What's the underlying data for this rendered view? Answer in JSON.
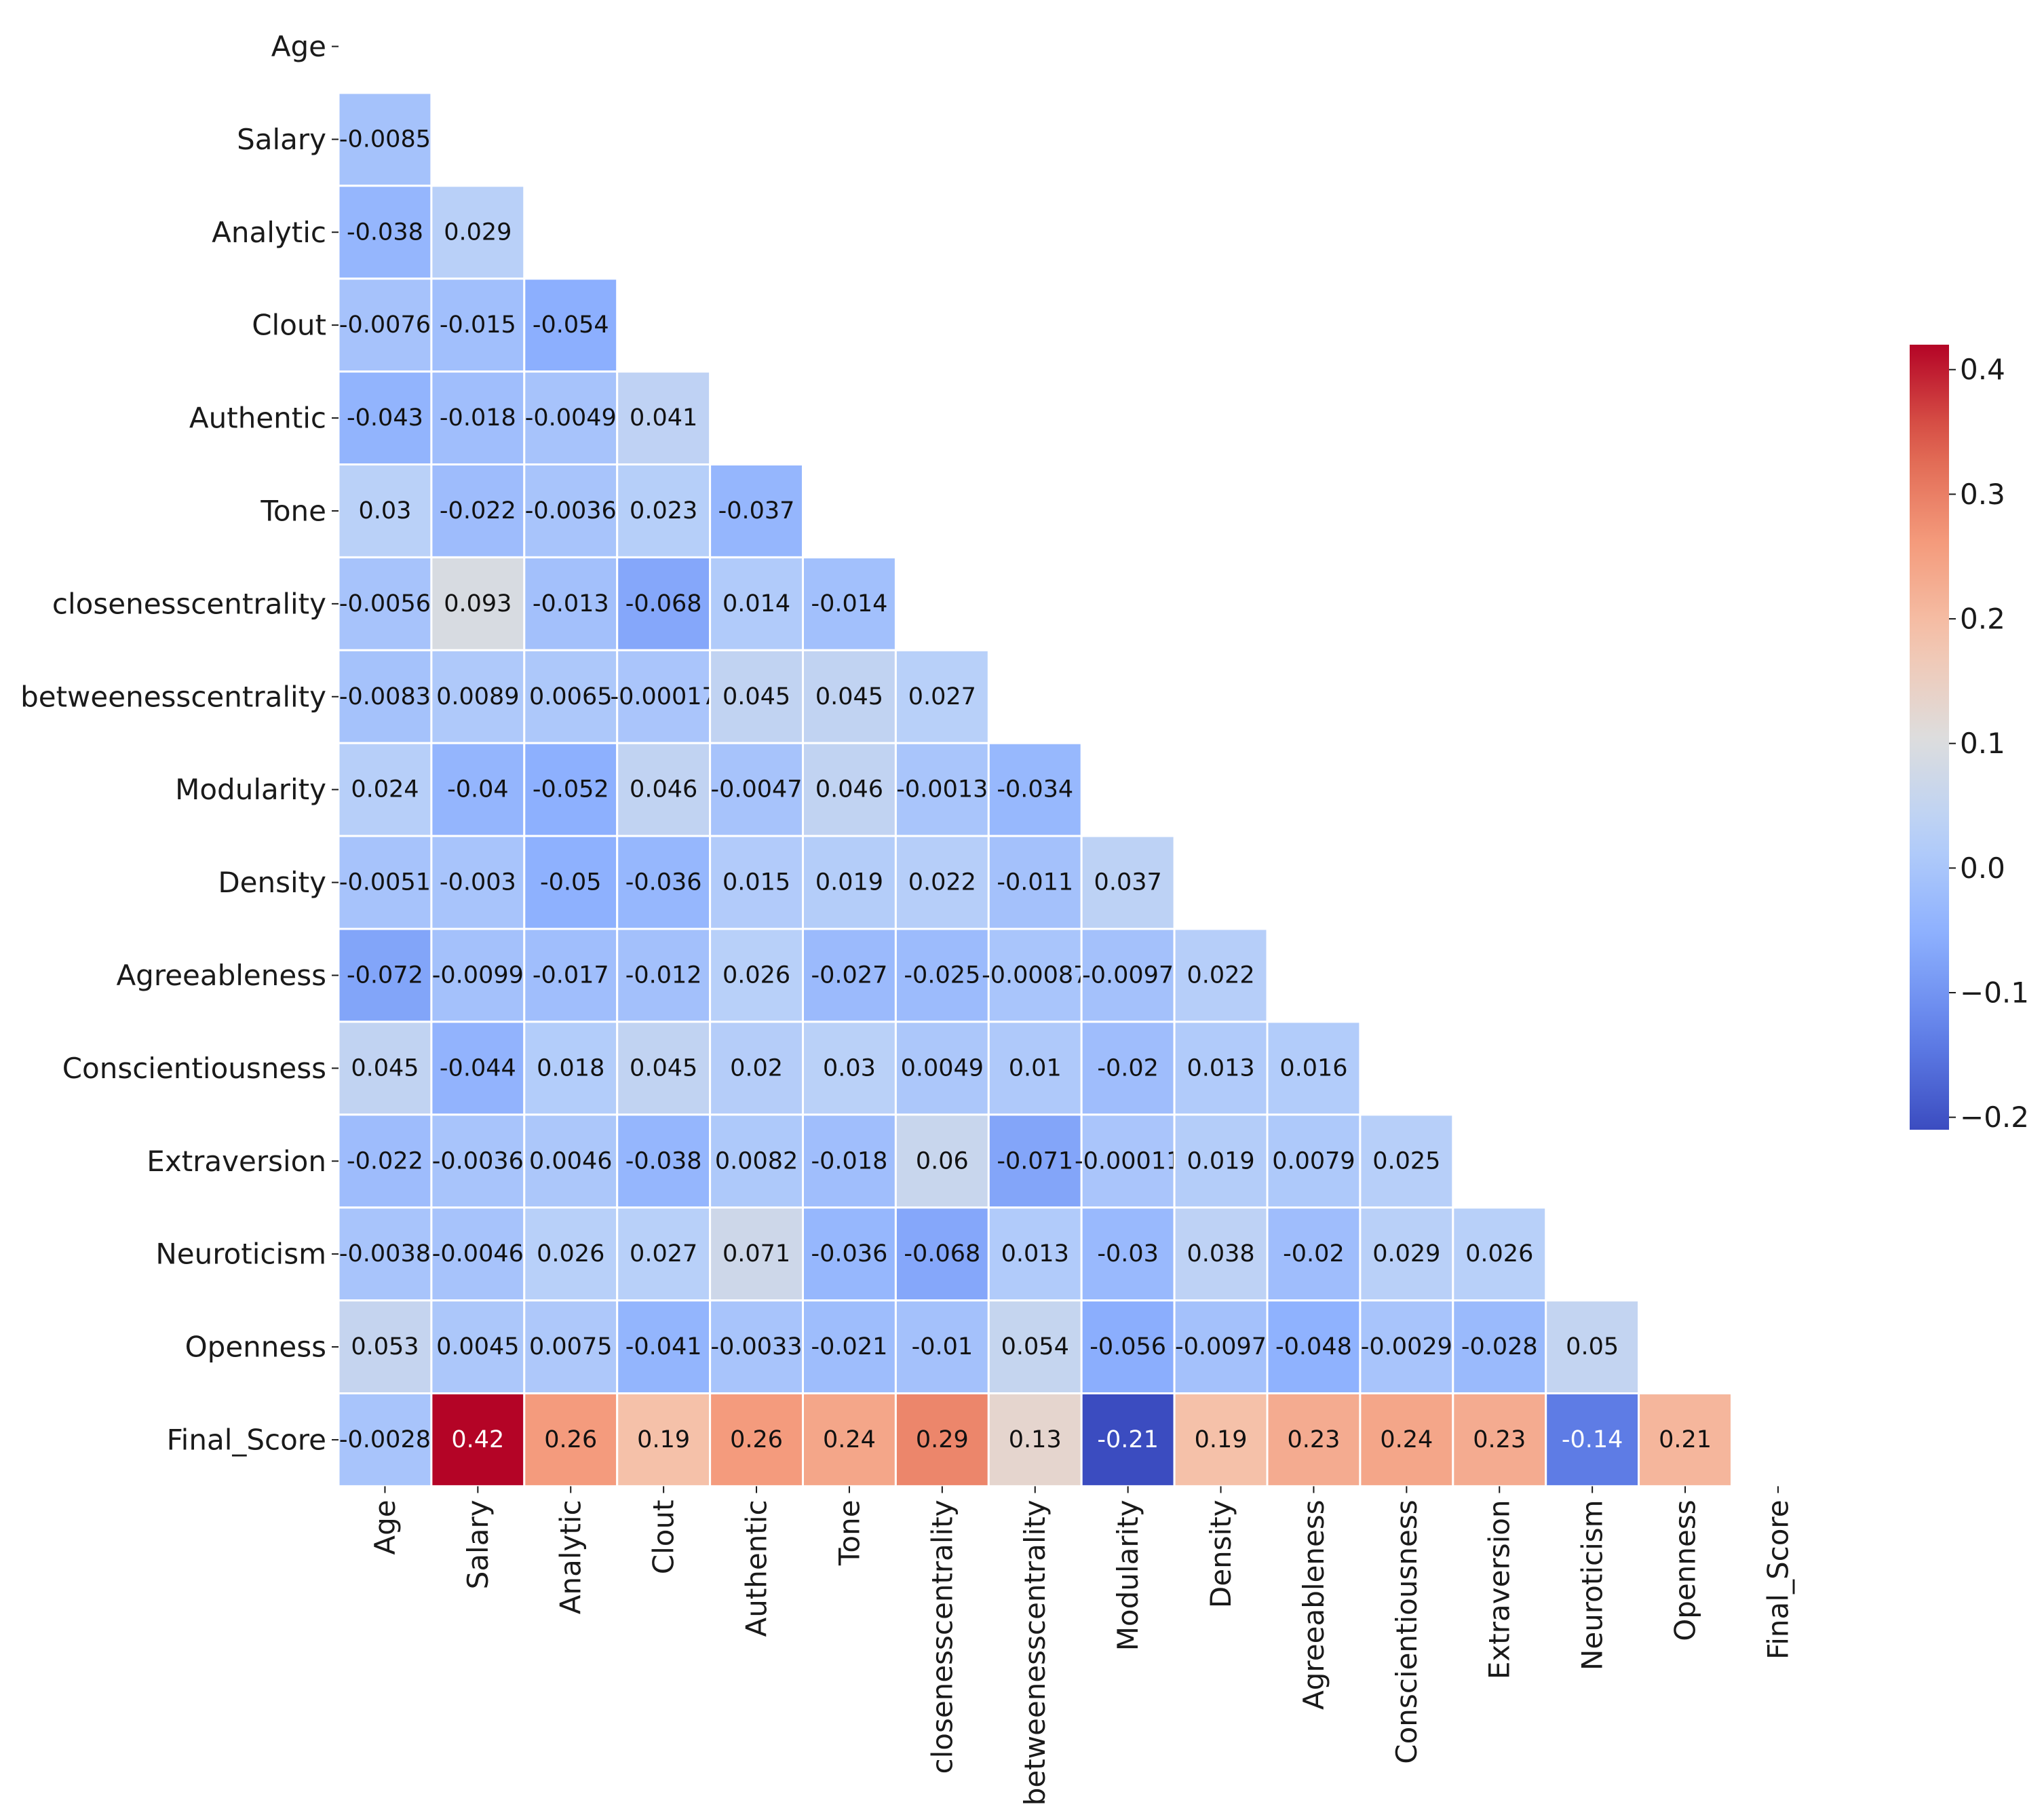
{
  "chart_data": {
    "type": "heatmap",
    "variables": [
      "Age",
      "Salary",
      "Analytic",
      "Clout",
      "Authentic",
      "Tone",
      "closenesscentrality",
      "betweenesscentrality",
      "Modularity",
      "Density",
      "Agreeableness",
      "Conscientiousness",
      "Extraversion",
      "Neuroticism",
      "Openness",
      "Final_Score"
    ],
    "cells": [
      [],
      [
        "-0.0085"
      ],
      [
        "-0.038",
        "0.029"
      ],
      [
        "-0.0076",
        "-0.015",
        "-0.054"
      ],
      [
        "-0.043",
        "-0.018",
        "-0.0049",
        "0.041"
      ],
      [
        "0.03",
        "-0.022",
        "-0.0036",
        "0.023",
        "-0.037"
      ],
      [
        "-0.0056",
        "0.093",
        "-0.013",
        "-0.068",
        "0.014",
        "-0.014"
      ],
      [
        "-0.0083",
        "0.0089",
        "0.0065",
        "-0.00017",
        "0.045",
        "0.045",
        "0.027"
      ],
      [
        "0.024",
        "-0.04",
        "-0.052",
        "0.046",
        "-0.0047",
        "0.046",
        "-0.0013",
        "-0.034"
      ],
      [
        "-0.0051",
        "-0.003",
        "-0.05",
        "-0.036",
        "0.015",
        "0.019",
        "0.022",
        "-0.011",
        "0.037"
      ],
      [
        "-0.072",
        "-0.0099",
        "-0.017",
        "-0.012",
        "0.026",
        "-0.027",
        "-0.025",
        "-0.00087",
        "-0.0097",
        "0.022"
      ],
      [
        "0.045",
        "-0.044",
        "0.018",
        "0.045",
        "0.02",
        "0.03",
        "0.0049",
        "0.01",
        "-0.02",
        "0.013",
        "0.016"
      ],
      [
        "-0.022",
        "-0.0036",
        "0.0046",
        "-0.038",
        "0.0082",
        "-0.018",
        "0.06",
        "-0.071",
        "-0.00011",
        "0.019",
        "0.0079",
        "0.025"
      ],
      [
        "-0.0038",
        "-0.0046",
        "0.026",
        "0.027",
        "0.071",
        "-0.036",
        "-0.068",
        "0.013",
        "-0.03",
        "0.038",
        "-0.02",
        "0.029",
        "0.026"
      ],
      [
        "0.053",
        "0.0045",
        "0.0075",
        "-0.041",
        "-0.0033",
        "-0.021",
        "-0.01",
        "0.054",
        "-0.056",
        "-0.0097",
        "-0.048",
        "-0.0029",
        "-0.028",
        "0.05"
      ],
      [
        "-0.0028",
        "0.42",
        "0.26",
        "0.19",
        "0.26",
        "0.24",
        "0.29",
        "0.13",
        "-0.21",
        "0.19",
        "0.23",
        "0.24",
        "0.23",
        "-0.14",
        "0.21"
      ]
    ],
    "mask": "upper-triangle-including-diagonal",
    "colormap": "coolwarm",
    "vmin": -0.21,
    "vmax": 0.42,
    "colorbar_ticks": [
      "0.4",
      "0.3",
      "0.2",
      "0.1",
      "0.0",
      "−0.1",
      "−0.2"
    ],
    "colorbar_tick_values": [
      0.4,
      0.3,
      0.2,
      0.1,
      0.0,
      -0.1,
      -0.2
    ],
    "colors": {
      "low": "#3b4cc0",
      "mid": "#dddddd",
      "high": "#b40426"
    },
    "legend_position": "right",
    "grid": false
  }
}
